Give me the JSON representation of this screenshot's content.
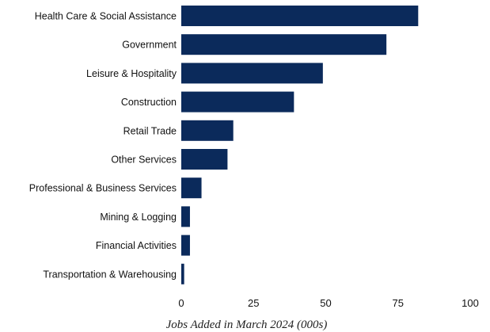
{
  "chart_data": {
    "type": "bar",
    "orientation": "horizontal",
    "categories": [
      "Health Care & Social Assistance",
      "Government",
      "Leisure & Hospitality",
      "Construction",
      "Retail Trade",
      "Other Services",
      "Professional & Business Services",
      "Mining & Logging",
      "Financial Activities",
      "Transportation & Warehousing"
    ],
    "values": [
      82,
      71,
      49,
      39,
      18,
      16,
      7,
      3,
      3,
      1
    ],
    "xlabel": "Jobs Added in March 2024 (000s)",
    "xlim": [
      0,
      100
    ],
    "xticks": [
      "0",
      "25",
      "50",
      "75",
      "100"
    ],
    "bar_color": "#0b2a5b",
    "grid": false,
    "legend": "none"
  }
}
